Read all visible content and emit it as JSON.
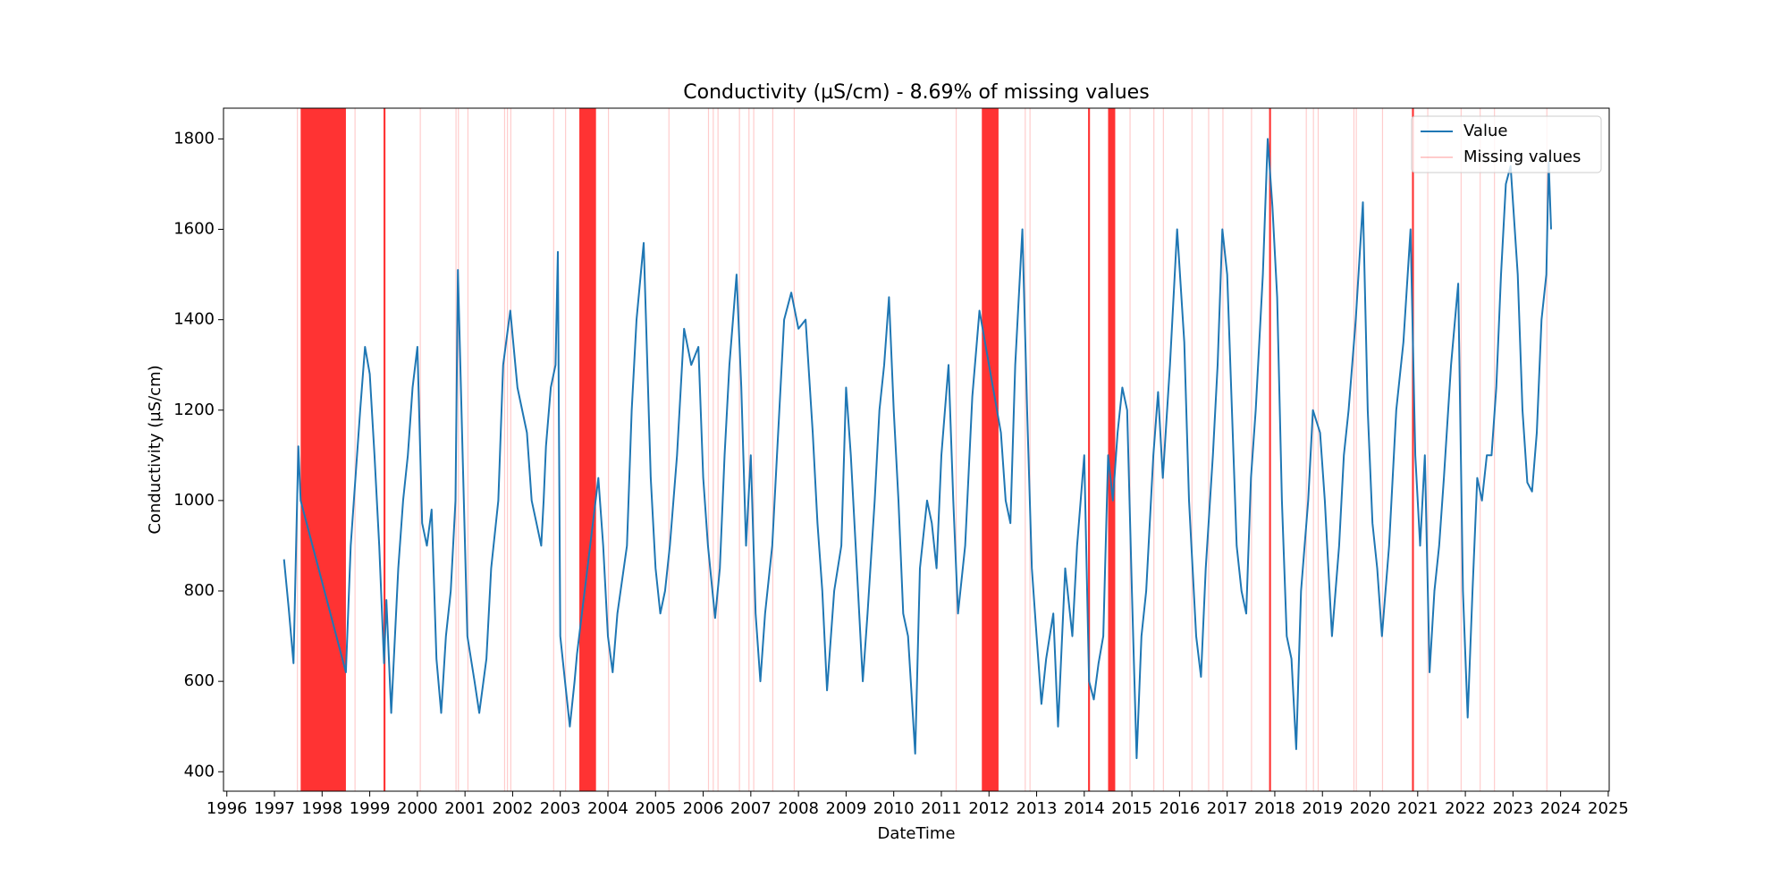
{
  "chart_data": {
    "type": "line",
    "title": "Conductivity (µS/cm) - 8.69% of missing values",
    "xlabel": "DateTime",
    "ylabel": "Conductivity (µS/cm)",
    "x": [
      1997.2,
      1997.3,
      1997.4,
      1997.5,
      1997.55,
      1998.5,
      1998.6,
      1998.7,
      1998.8,
      1998.9,
      1999.0,
      1999.1,
      1999.2,
      1999.3,
      1999.35,
      1999.45,
      1999.6,
      1999.7,
      1999.8,
      1999.9,
      2000.0,
      2000.1,
      2000.2,
      2000.3,
      2000.4,
      2000.5,
      2000.6,
      2000.7,
      2000.8,
      2000.85,
      2000.95,
      2001.05,
      2001.2,
      2001.3,
      2001.45,
      2001.55,
      2001.7,
      2001.8,
      2001.95,
      2002.1,
      2002.3,
      2002.4,
      2002.5,
      2002.6,
      2002.65,
      2002.7,
      2002.8,
      2002.9,
      2002.95,
      2003.0,
      2003.1,
      2003.2,
      2003.3,
      2003.35,
      2003.8,
      2003.9,
      2004.0,
      2004.1,
      2004.2,
      2004.4,
      2004.5,
      2004.6,
      2004.75,
      2004.9,
      2005.0,
      2005.1,
      2005.2,
      2005.3,
      2005.45,
      2005.6,
      2005.75,
      2005.9,
      2006.0,
      2006.1,
      2006.25,
      2006.35,
      2006.45,
      2006.55,
      2006.7,
      2006.8,
      2006.9,
      2007.0,
      2007.1,
      2007.2,
      2007.3,
      2007.45,
      2007.55,
      2007.7,
      2007.85,
      2008.0,
      2008.15,
      2008.3,
      2008.4,
      2008.5,
      2008.6,
      2008.75,
      2008.9,
      2009.0,
      2009.1,
      2009.2,
      2009.35,
      2009.45,
      2009.6,
      2009.7,
      2009.8,
      2009.9,
      2010.0,
      2010.1,
      2010.2,
      2010.3,
      2010.45,
      2010.55,
      2010.7,
      2010.8,
      2010.9,
      2011.0,
      2011.15,
      2011.25,
      2011.35,
      2011.5,
      2011.65,
      2011.8,
      2012.25,
      2012.35,
      2012.45,
      2012.55,
      2012.7,
      2012.8,
      2012.9,
      2013.0,
      2013.1,
      2013.2,
      2013.35,
      2013.45,
      2013.6,
      2013.75,
      2013.85,
      2014.0,
      2014.1,
      2014.2,
      2014.3,
      2014.4,
      2014.5,
      2014.6,
      2014.7,
      2014.8,
      2014.9,
      2015.0,
      2015.1,
      2015.2,
      2015.3,
      2015.45,
      2015.55,
      2015.65,
      2015.8,
      2015.95,
      2016.1,
      2016.2,
      2016.35,
      2016.45,
      2016.55,
      2016.7,
      2016.8,
      2016.9,
      2017.0,
      2017.1,
      2017.2,
      2017.3,
      2017.4,
      2017.5,
      2017.6,
      2017.75,
      2017.85,
      2017.95,
      2018.05,
      2018.15,
      2018.25,
      2018.35,
      2018.45,
      2018.55,
      2018.7,
      2018.8,
      2018.95,
      2019.05,
      2019.2,
      2019.35,
      2019.45,
      2019.55,
      2019.7,
      2019.85,
      2019.95,
      2020.05,
      2020.15,
      2020.25,
      2020.4,
      2020.55,
      2020.7,
      2020.85,
      2020.95,
      2021.05,
      2021.15,
      2021.25,
      2021.35,
      2021.45,
      2021.55,
      2021.7,
      2021.85,
      2021.95,
      2022.05,
      2022.15,
      2022.25,
      2022.35,
      2022.45,
      2022.55,
      2022.65,
      2022.75,
      2022.85,
      2022.95,
      2023.1,
      2023.2,
      2023.3,
      2023.4,
      2023.5,
      2023.6,
      2023.7,
      2023.75,
      2023.8
    ],
    "series": [
      {
        "name": "Value",
        "color": "#1f77b4",
        "values": [
          870,
          760,
          640,
          1120,
          1000,
          620,
          900,
          1050,
          1200,
          1340,
          1280,
          1100,
          900,
          640,
          780,
          530,
          850,
          1000,
          1100,
          1250,
          1340,
          950,
          900,
          980,
          650,
          530,
          700,
          800,
          1000,
          1510,
          1100,
          700,
          600,
          530,
          650,
          850,
          1000,
          1300,
          1420,
          1250,
          1150,
          1000,
          950,
          900,
          1000,
          1120,
          1250,
          1300,
          1550,
          700,
          600,
          500,
          600,
          660,
          1050,
          900,
          700,
          620,
          750,
          900,
          1200,
          1400,
          1570,
          1050,
          850,
          750,
          800,
          900,
          1100,
          1380,
          1300,
          1340,
          1050,
          900,
          740,
          850,
          1100,
          1300,
          1500,
          1250,
          900,
          1100,
          750,
          600,
          750,
          900,
          1100,
          1400,
          1460,
          1380,
          1400,
          1150,
          950,
          800,
          580,
          800,
          900,
          1250,
          1100,
          900,
          600,
          750,
          1000,
          1200,
          1300,
          1450,
          1200,
          1000,
          750,
          700,
          440,
          850,
          1000,
          950,
          850,
          1100,
          1300,
          1000,
          750,
          900,
          1230,
          1420,
          1150,
          1000,
          950,
          1300,
          1600,
          1200,
          850,
          700,
          550,
          650,
          750,
          500,
          850,
          700,
          900,
          1100,
          600,
          560,
          640,
          700,
          1100,
          1000,
          1150,
          1250,
          1200,
          800,
          430,
          700,
          800,
          1100,
          1240,
          1050,
          1300,
          1600,
          1350,
          1000,
          700,
          610,
          850,
          1100,
          1300,
          1600,
          1500,
          1200,
          900,
          800,
          750,
          1050,
          1200,
          1500,
          1800,
          1650,
          1450,
          1000,
          700,
          650,
          450,
          800,
          1000,
          1200,
          1150,
          1000,
          700,
          900,
          1100,
          1200,
          1400,
          1660,
          1200,
          950,
          850,
          700,
          900,
          1200,
          1350,
          1600,
          1100,
          900,
          1100,
          620,
          800,
          900,
          1050,
          1300,
          1480,
          800,
          520,
          800,
          1050,
          1000,
          1100,
          1100,
          1250,
          1500,
          1700,
          1740,
          1500,
          1200,
          1040,
          1020,
          1150,
          1400,
          1500,
          1750,
          1600
        ]
      }
    ],
    "missing": {
      "name": "Missing values",
      "color": "#ff0000",
      "spans": [
        [
          1997.47,
          1997.48
        ],
        [
          1997.55,
          1998.5
        ],
        [
          1998.68,
          1998.69
        ],
        [
          1999.29,
          1999.33
        ],
        [
          2000.05,
          2000.06
        ],
        [
          2000.8,
          2000.81
        ],
        [
          2000.85,
          2000.86
        ],
        [
          2001.05,
          2001.06
        ],
        [
          2001.82,
          2001.83
        ],
        [
          2001.88,
          2001.89
        ],
        [
          2001.95,
          2001.96
        ],
        [
          2002.85,
          2002.86
        ],
        [
          2003.1,
          2003.11
        ],
        [
          2003.4,
          2003.75
        ],
        [
          2004.0,
          2004.01
        ],
        [
          2005.27,
          2005.28
        ],
        [
          2006.1,
          2006.11
        ],
        [
          2006.2,
          2006.21
        ],
        [
          2006.3,
          2006.31
        ],
        [
          2006.75,
          2006.76
        ],
        [
          2006.95,
          2006.96
        ],
        [
          2007.05,
          2007.06
        ],
        [
          2007.45,
          2007.46
        ],
        [
          2007.9,
          2007.91
        ],
        [
          2011.3,
          2011.31
        ],
        [
          2011.85,
          2012.2
        ],
        [
          2012.75,
          2012.76
        ],
        [
          2012.85,
          2012.86
        ],
        [
          2014.08,
          2014.12
        ],
        [
          2014.5,
          2014.65
        ],
        [
          2014.95,
          2014.96
        ],
        [
          2015.45,
          2015.46
        ],
        [
          2015.65,
          2015.66
        ],
        [
          2016.25,
          2016.26
        ],
        [
          2016.6,
          2016.61
        ],
        [
          2016.9,
          2016.91
        ],
        [
          2017.5,
          2017.51
        ],
        [
          2017.88,
          2017.92
        ],
        [
          2018.65,
          2018.66
        ],
        [
          2018.8,
          2018.81
        ],
        [
          2018.9,
          2018.91
        ],
        [
          2019.65,
          2019.66
        ],
        [
          2019.7,
          2019.71
        ],
        [
          2020.25,
          2020.26
        ],
        [
          2020.88,
          2020.92
        ],
        [
          2021.2,
          2021.21
        ],
        [
          2021.9,
          2021.91
        ],
        [
          2022.3,
          2022.31
        ],
        [
          2022.6,
          2022.61
        ],
        [
          2023.7,
          2023.71
        ]
      ]
    },
    "xlim": [
      1995.93,
      2025.02
    ],
    "ylim": [
      357,
      1868
    ],
    "xticks": [
      1996,
      1997,
      1998,
      1999,
      2000,
      2001,
      2002,
      2003,
      2004,
      2005,
      2006,
      2007,
      2008,
      2009,
      2010,
      2011,
      2012,
      2013,
      2014,
      2015,
      2016,
      2017,
      2018,
      2019,
      2020,
      2021,
      2022,
      2023,
      2024,
      2025
    ],
    "yticks": [
      400,
      600,
      800,
      1000,
      1200,
      1400,
      1600,
      1800
    ],
    "legend": "upper right"
  }
}
